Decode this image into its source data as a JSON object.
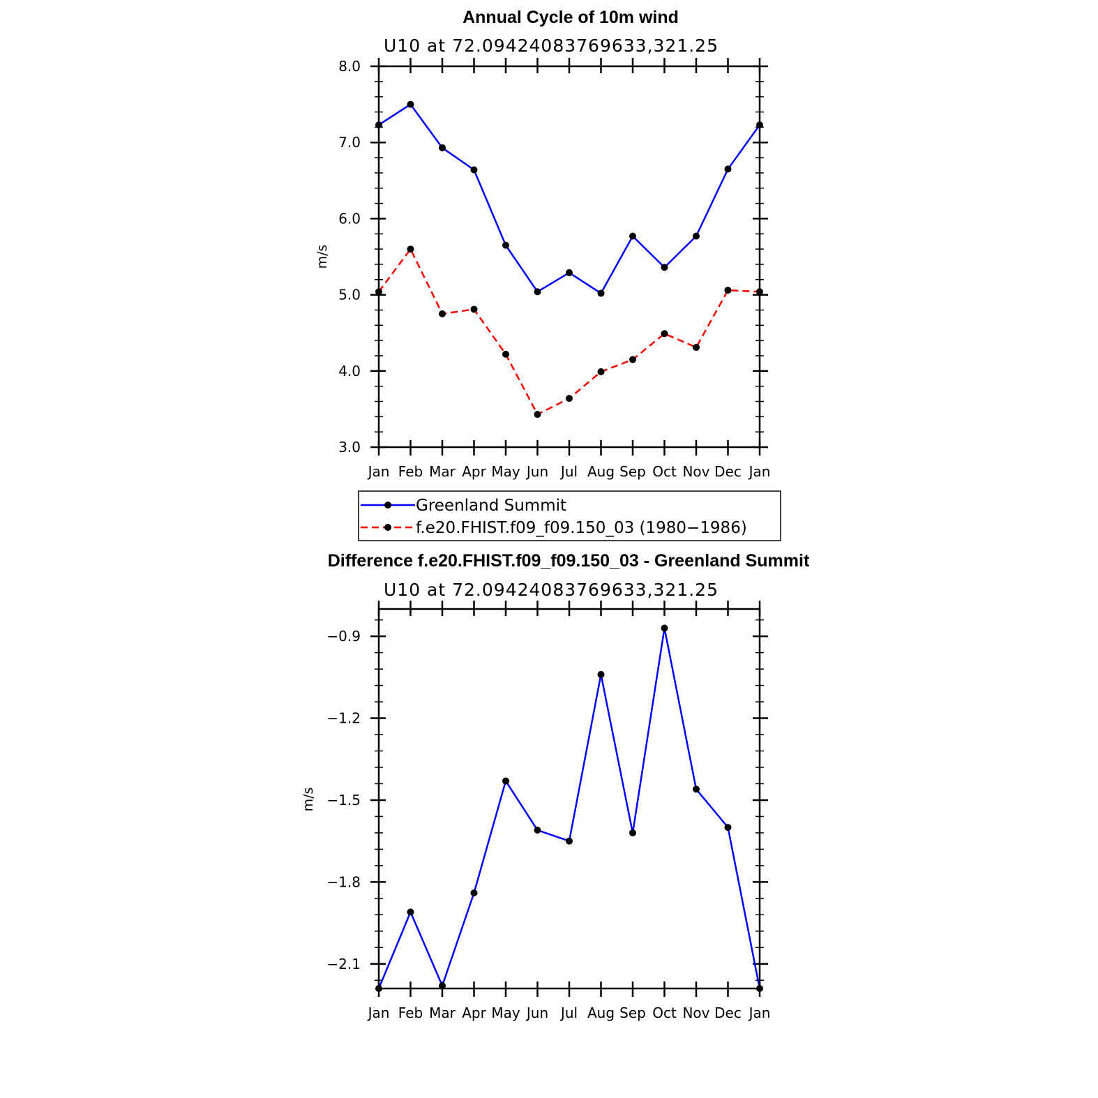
{
  "chart_data": [
    {
      "type": "line",
      "title": "Annual Cycle of 10m wind",
      "subtitle": "U10  at  72.09424083769633,321.25",
      "xlabel": "",
      "ylabel": "m/s",
      "categories": [
        "Jan",
        "Feb",
        "Mar",
        "Apr",
        "May",
        "Jun",
        "Jul",
        "Aug",
        "Sep",
        "Oct",
        "Nov",
        "Dec",
        "Jan"
      ],
      "ylim": [
        3.0,
        8.0
      ],
      "yticks": [
        "3.0",
        "4.0",
        "5.0",
        "6.0",
        "7.0",
        "8.0"
      ],
      "ytick_values": [
        3.0,
        4.0,
        5.0,
        6.0,
        7.0,
        8.0
      ],
      "grid": false,
      "legend_position": "bottom",
      "series": [
        {
          "name": "Greenland Summit",
          "color": "#0000ff",
          "dash": "solid",
          "marker": "filled-circle",
          "values": [
            7.23,
            7.5,
            6.93,
            6.64,
            5.65,
            5.04,
            5.29,
            5.02,
            5.77,
            5.36,
            5.77,
            6.65,
            7.23
          ]
        },
        {
          "name": "f.e20.FHIST.f09_f09.150_03 (1980−1986)",
          "color": "#ff0000",
          "dash": "dashed",
          "marker": "filled-circle",
          "values": [
            5.04,
            5.6,
            4.75,
            4.81,
            4.22,
            3.43,
            3.64,
            3.99,
            4.15,
            4.49,
            4.31,
            5.06,
            5.04
          ]
        }
      ]
    },
    {
      "type": "line",
      "title": "Difference f.e20.FHIST.f09_f09.150_03 - Greenland Summit",
      "subtitle": "U10  at  72.09424083769633,321.25",
      "xlabel": "",
      "ylabel": "m/s",
      "categories": [
        "Jan",
        "Feb",
        "Mar",
        "Apr",
        "May",
        "Jun",
        "Jul",
        "Aug",
        "Sep",
        "Oct",
        "Nov",
        "Dec",
        "Jan"
      ],
      "ylim": [
        -2.19,
        -0.8
      ],
      "yticks": [
        "−2.1",
        "−1.8",
        "−1.5",
        "−1.2",
        "−0.9"
      ],
      "ytick_values": [
        -2.1,
        -1.8,
        -1.5,
        -1.2,
        -0.9
      ],
      "grid": false,
      "series": [
        {
          "name": "",
          "color": "#0000ff",
          "dash": "solid",
          "marker": "filled-circle",
          "values": [
            -2.19,
            -1.91,
            -2.18,
            -1.84,
            -1.43,
            -1.61,
            -1.65,
            -1.04,
            -1.62,
            -0.87,
            -1.46,
            -1.6,
            -2.19
          ]
        }
      ]
    }
  ]
}
